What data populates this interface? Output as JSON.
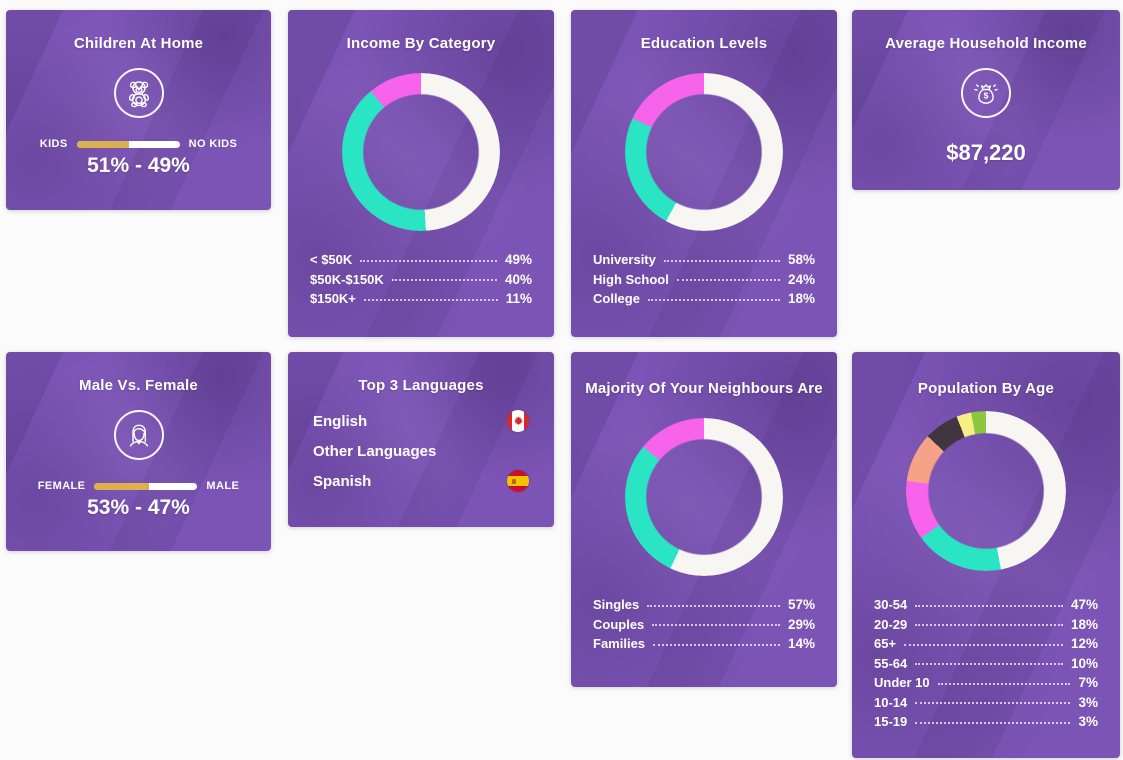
{
  "theme": {
    "card_purple": "#7c54b6",
    "page_bg": "#fbfbfb",
    "text_color": "#ffffff",
    "bar_gold": "#dcb04e",
    "seg_white": "#f7f6f3",
    "seg_teal": "#2ae5c4",
    "seg_magenta": "#f863eb",
    "seg_salmon": "#f5a287",
    "seg_dark": "#413640",
    "seg_yellow": "#f7ef85",
    "seg_green": "#8dc63f"
  },
  "cards": {
    "children": {
      "title": "Children At Home",
      "icon": "teddy-bear-icon",
      "left_label": "KIDS",
      "right_label": "NO KIDS",
      "result": "51% - 49%"
    },
    "income": {
      "title": "Income By Category"
    },
    "education": {
      "title": "Education Levels"
    },
    "avg_income": {
      "title": "Average Household Income",
      "icon": "money-bag-icon",
      "value": "$87,220"
    },
    "gender": {
      "title": "Male Vs. Female",
      "icon": "woman-icon",
      "left_label": "FEMALE",
      "right_label": "MALE",
      "result": "53% - 47%"
    },
    "languages": {
      "title": "Top 3 Languages",
      "items": [
        {
          "label": "English",
          "flag": "canada-flag-icon"
        },
        {
          "label": "Other Languages",
          "flag": null
        },
        {
          "label": "Spanish",
          "flag": "spain-flag-icon"
        }
      ]
    },
    "neighbours": {
      "title": "Majority Of Your Neighbours Are"
    },
    "population": {
      "title": "Population By Age"
    }
  },
  "chart_data": [
    {
      "type": "pie",
      "donut": true,
      "legend_position": "bottom",
      "title": "Income By Category",
      "labels": [
        "< $50K",
        "$50K-$150K",
        "$150K+"
      ],
      "values": [
        49,
        40,
        11
      ],
      "value_labels": [
        "49%",
        "40%",
        "11%"
      ],
      "colors": [
        "#f7f6f3",
        "#2ae5c4",
        "#f863eb"
      ]
    },
    {
      "type": "pie",
      "donut": true,
      "legend_position": "bottom",
      "title": "Education Levels",
      "labels": [
        "University",
        "High School",
        "College"
      ],
      "values": [
        58,
        24,
        18
      ],
      "value_labels": [
        "58%",
        "24%",
        "18%"
      ],
      "colors": [
        "#f7f6f3",
        "#2ae5c4",
        "#f863eb"
      ]
    },
    {
      "type": "pie",
      "donut": true,
      "legend_position": "bottom",
      "title": "Majority Of Your Neighbours Are",
      "labels": [
        "Singles",
        "Couples",
        "Families"
      ],
      "values": [
        57,
        29,
        14
      ],
      "value_labels": [
        "57%",
        "29%",
        "14%"
      ],
      "colors": [
        "#f7f6f3",
        "#2ae5c4",
        "#f863eb"
      ]
    },
    {
      "type": "pie",
      "donut": true,
      "legend_position": "bottom",
      "title": "Population By Age",
      "labels": [
        "30-54",
        "20-29",
        "65+",
        "55-64",
        "Under 10",
        "10-14",
        "15-19"
      ],
      "values": [
        47,
        18,
        12,
        10,
        7,
        3,
        3
      ],
      "value_labels": [
        "47%",
        "18%",
        "12%",
        "10%",
        "7%",
        "3%",
        "3%"
      ],
      "colors": [
        "#f7f6f3",
        "#2ae5c4",
        "#f863eb",
        "#f5a287",
        "#413640",
        "#f7ef85",
        "#8dc63f"
      ]
    },
    {
      "type": "bar",
      "title": "Children At Home",
      "categories": [
        "KIDS",
        "NO KIDS"
      ],
      "values": [
        51,
        49
      ],
      "colors": [
        "#dcb04e",
        "#ffffff"
      ]
    },
    {
      "type": "bar",
      "title": "Male Vs. Female",
      "categories": [
        "FEMALE",
        "MALE"
      ],
      "values": [
        53,
        47
      ],
      "colors": [
        "#dcb04e",
        "#ffffff"
      ]
    }
  ]
}
